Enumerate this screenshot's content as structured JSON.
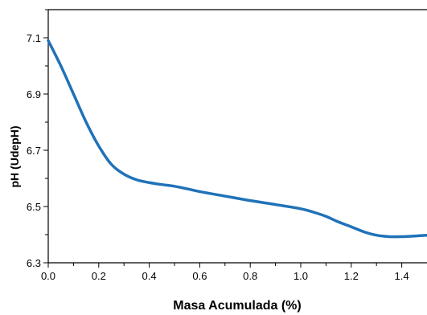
{
  "chart_data": {
    "type": "line",
    "title": "",
    "xlabel": "Masa Acumulada (%)",
    "ylabel": "pH (UdepH)",
    "xlim": [
      0.0,
      1.5
    ],
    "ylim": [
      6.3,
      7.2
    ],
    "x_ticks": [
      "0.0",
      "0.2",
      "0.4",
      "0.6",
      "0.8",
      "1.0",
      "1.2",
      "1.4"
    ],
    "y_ticks": [
      "6.3",
      "6.5",
      "6.7",
      "6.9",
      "7.1"
    ],
    "grid": false,
    "legend": "none",
    "series": [
      {
        "color": "#1f72b8",
        "x": [
          0.0,
          0.05,
          0.1,
          0.15,
          0.2,
          0.25,
          0.3,
          0.35,
          0.4,
          0.45,
          0.5,
          0.55,
          0.6,
          0.7,
          0.8,
          0.9,
          1.0,
          1.05,
          1.1,
          1.15,
          1.2,
          1.25,
          1.3,
          1.35,
          1.4,
          1.45,
          1.5
        ],
        "y": [
          7.09,
          7.0,
          6.9,
          6.8,
          6.715,
          6.65,
          6.615,
          6.595,
          6.585,
          6.578,
          6.572,
          6.563,
          6.553,
          6.537,
          6.521,
          6.507,
          6.492,
          6.48,
          6.465,
          6.445,
          6.428,
          6.41,
          6.398,
          6.393,
          6.393,
          6.395,
          6.398
        ]
      }
    ]
  }
}
